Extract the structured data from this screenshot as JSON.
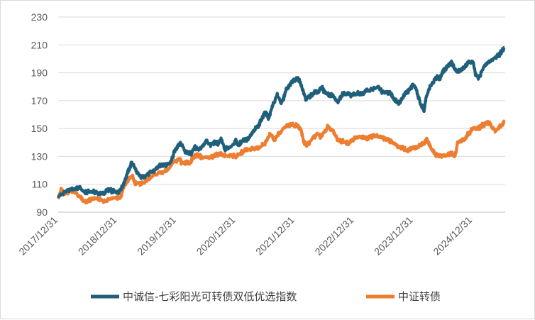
{
  "chart_data": {
    "type": "line",
    "title": "",
    "xlabel": "",
    "ylabel": "",
    "ylim": [
      90,
      230
    ],
    "yticks": [
      90,
      110,
      130,
      150,
      170,
      190,
      210,
      230
    ],
    "x_tick_labels": [
      "2017/12/31",
      "2018/12/31",
      "2019/12/31",
      "2020/12/31",
      "2021/12/31",
      "2022/12/31",
      "2023/12/31",
      "2024/12/31"
    ],
    "x_range": [
      2018.0,
      2025.55
    ],
    "grid": "horizontal",
    "legend_position": "bottom",
    "series": [
      {
        "name": "中诚信-七彩阳光可转债双低优选指数",
        "color": "#1f5f7a",
        "x": [
          2018.0,
          2018.1,
          2018.2,
          2018.3,
          2018.35,
          2018.45,
          2018.55,
          2018.65,
          2018.75,
          2018.85,
          2018.92,
          2019.0,
          2019.08,
          2019.12,
          2019.18,
          2019.25,
          2019.33,
          2019.4,
          2019.5,
          2019.6,
          2019.7,
          2019.75,
          2019.82,
          2019.9,
          2019.97,
          2020.03,
          2020.08,
          2020.15,
          2020.2,
          2020.25,
          2020.3,
          2020.38,
          2020.5,
          2020.58,
          2020.65,
          2020.7,
          2020.75,
          2020.82,
          2020.9,
          2021.0,
          2021.05,
          2021.12,
          2021.2,
          2021.3,
          2021.38,
          2021.45,
          2021.5,
          2021.55,
          2021.62,
          2021.7,
          2021.78,
          2021.85,
          2021.92,
          2021.97,
          2022.05,
          2022.1,
          2022.18,
          2022.25,
          2022.33,
          2022.4,
          2022.45,
          2022.5,
          2022.58,
          2022.65,
          2022.72,
          2022.8,
          2022.87,
          2022.95,
          2023.05,
          2023.12,
          2023.2,
          2023.3,
          2023.4,
          2023.48,
          2023.55,
          2023.62,
          2023.68,
          2023.75,
          2023.8,
          2023.87,
          2023.92,
          2024.0,
          2024.07,
          2024.12,
          2024.18,
          2024.22,
          2024.3,
          2024.4,
          2024.45,
          2024.5,
          2024.55,
          2024.6,
          2024.65,
          2024.72,
          2024.8,
          2024.88,
          2024.92,
          2025.0,
          2025.05,
          2025.1,
          2025.2,
          2025.25,
          2025.3,
          2025.38,
          2025.45,
          2025.5,
          2025.53
        ],
        "y": [
          101,
          104,
          106,
          107,
          108,
          104,
          105,
          104,
          103,
          106,
          105,
          104,
          108,
          112,
          119,
          126,
          118,
          115,
          117,
          119,
          123,
          124,
          124,
          126,
          134,
          138,
          139,
          133,
          133,
          132,
          137,
          134,
          141,
          138,
          140,
          139,
          142,
          135,
          137,
          141,
          138,
          142,
          142,
          148,
          152,
          158,
          162,
          157,
          166,
          174,
          168,
          178,
          182,
          184,
          186,
          182,
          171,
          173,
          176,
          176,
          180,
          176,
          174,
          173,
          169,
          175,
          175,
          174,
          175,
          175,
          177,
          178,
          180,
          176,
          176,
          175,
          171,
          168,
          171,
          176,
          177,
          182,
          175,
          167,
          163,
          174,
          182,
          187,
          186,
          191,
          193,
          196,
          197,
          191,
          192,
          195,
          197,
          199,
          189,
          186,
          195,
          197,
          198,
          201,
          203,
          206,
          208
        ]
      },
      {
        "name": "中证转债",
        "color": "#ed7d31",
        "x": [
          2018.0,
          2018.05,
          2018.1,
          2018.2,
          2018.3,
          2018.38,
          2018.45,
          2018.55,
          2018.65,
          2018.75,
          2018.85,
          2018.95,
          2019.05,
          2019.1,
          2019.18,
          2019.25,
          2019.3,
          2019.4,
          2019.5,
          2019.6,
          2019.7,
          2019.8,
          2019.88,
          2019.95,
          2020.05,
          2020.1,
          2020.18,
          2020.22,
          2020.28,
          2020.35,
          2020.45,
          2020.55,
          2020.65,
          2020.72,
          2020.8,
          2020.9,
          2021.0,
          2021.1,
          2021.2,
          2021.3,
          2021.4,
          2021.5,
          2021.58,
          2021.65,
          2021.72,
          2021.8,
          2021.88,
          2021.95,
          2022.05,
          2022.1,
          2022.15,
          2022.2,
          2022.3,
          2022.38,
          2022.45,
          2022.55,
          2022.65,
          2022.72,
          2022.8,
          2022.9,
          2023.0,
          2023.1,
          2023.2,
          2023.3,
          2023.4,
          2023.5,
          2023.55,
          2023.65,
          2023.75,
          2023.82,
          2023.9,
          2023.97,
          2024.05,
          2024.1,
          2024.18,
          2024.22,
          2024.3,
          2024.38,
          2024.45,
          2024.55,
          2024.65,
          2024.7,
          2024.75,
          2024.8,
          2024.88,
          2024.92,
          2024.95,
          2025.0,
          2025.1,
          2025.15,
          2025.2,
          2025.25,
          2025.3,
          2025.38,
          2025.45,
          2025.5,
          2025.53
        ],
        "y": [
          100,
          106,
          103,
          105,
          104,
          100,
          97,
          99,
          100,
          98,
          99,
          101,
          100,
          107,
          113,
          116,
          111,
          110,
          113,
          116,
          118,
          119,
          122,
          126,
          128,
          124,
          126,
          125,
          130,
          131,
          129,
          129,
          131,
          132,
          130,
          131,
          130,
          133,
          135,
          136,
          136,
          140,
          146,
          142,
          146,
          150,
          152,
          153,
          152,
          149,
          140,
          138,
          143,
          146,
          144,
          151,
          148,
          142,
          141,
          139,
          143,
          144,
          143,
          144,
          145,
          143,
          142,
          140,
          137,
          136,
          134,
          136,
          136,
          138,
          139,
          142,
          136,
          131,
          130,
          131,
          132,
          130,
          140,
          141,
          143,
          146,
          147,
          150,
          150,
          152,
          153,
          154,
          153,
          148,
          151,
          153,
          155
        ]
      }
    ]
  }
}
